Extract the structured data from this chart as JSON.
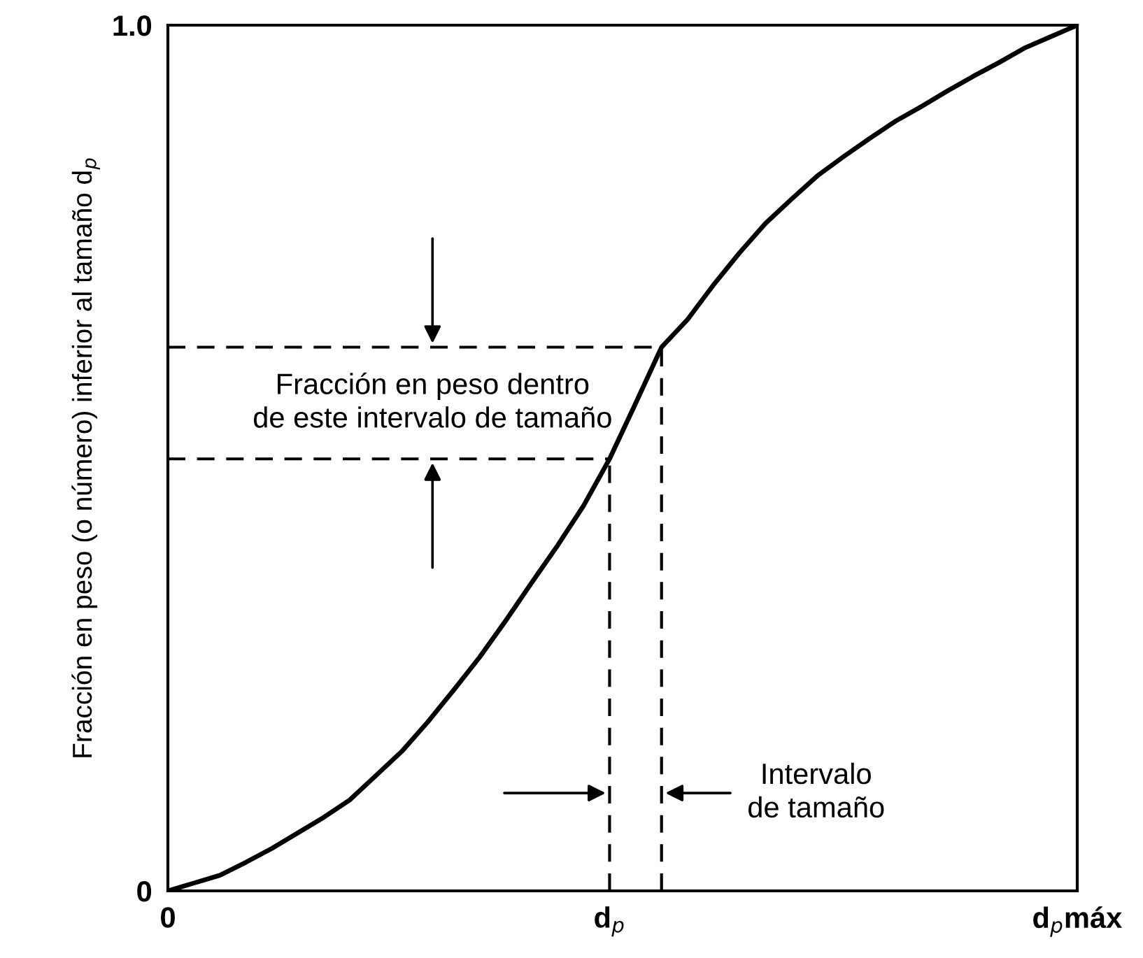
{
  "chart_data": {
    "type": "line",
    "ylabel": "Fracción en peso (o número) inferior al tamaño d$_{p}$",
    "ylim": [
      0,
      1
    ],
    "yticks": [
      0,
      {
        "value": 1,
        "label": "1.0"
      }
    ],
    "categories": [
      "0",
      null,
      null,
      null,
      null,
      null,
      null,
      null,
      null,
      null,
      null,
      null,
      null,
      null,
      null,
      null,
      null,
      "d$_{p}$",
      null,
      null,
      null,
      null,
      null,
      null,
      null,
      null,
      null,
      null,
      null,
      null,
      null,
      null,
      null,
      null,
      null,
      "d$_{p}$máx"
    ],
    "grid": false,
    "series": [
      {
        "color": "#000000",
        "line_style": "solid",
        "values": [
          0,
          0.009,
          0.018,
          0.033,
          0.049,
          0.067,
          0.085,
          0.105,
          0.133,
          0.161,
          0.195,
          0.232,
          0.27,
          0.312,
          0.356,
          0.399,
          0.445,
          0.499,
          0.563,
          0.628,
          0.66,
          0.7,
          0.737,
          0.771,
          0.799,
          0.826,
          0.848,
          0.869,
          0.889,
          0.906,
          0.924,
          0.941,
          0.957,
          0.974,
          0.987,
          1
        ]
      },
      {
        "color": "#000000",
        "line_style": "dashed",
        "values": [
          0.499,
          0.499,
          0.499,
          0.499,
          0.499,
          0.499,
          0.499,
          0.499,
          0.499,
          0.499,
          0.499,
          0.499,
          0.499,
          0.499,
          0.499,
          0.499,
          0.499,
          0.499,
          null,
          null,
          null,
          null,
          null,
          null,
          null,
          null,
          null,
          null,
          null,
          null,
          null,
          null,
          null,
          null,
          null,
          null
        ],
        "errors": [
          null,
          null,
          null,
          null,
          null,
          null,
          null,
          null,
          null,
          null,
          null,
          null,
          null,
          null,
          null,
          null,
          null,
          [
            0,
            0.499
          ],
          null,
          null,
          null,
          null,
          null,
          null,
          null,
          null,
          null,
          null,
          null,
          null,
          null,
          null,
          null,
          null,
          null,
          null
        ]
      },
      {
        "color": "#000000",
        "line_style": "dashed",
        "values": [
          0.628,
          0.628,
          0.628,
          0.628,
          0.628,
          0.628,
          0.628,
          0.628,
          0.628,
          0.628,
          0.628,
          0.628,
          0.628,
          0.628,
          0.628,
          0.628,
          0.628,
          0.628,
          0.628,
          0.628,
          null,
          null,
          null,
          null,
          null,
          null,
          null,
          null,
          null,
          null,
          null,
          null,
          null,
          null,
          null,
          null
        ],
        "errors": [
          null,
          null,
          null,
          null,
          null,
          null,
          null,
          null,
          null,
          null,
          null,
          null,
          null,
          null,
          null,
          null,
          null,
          null,
          null,
          [
            0,
            0.628
          ],
          null,
          null,
          null,
          null,
          null,
          null,
          null,
          null,
          null,
          null,
          null,
          null,
          null,
          null,
          null,
          null
        ]
      }
    ],
    "annotations": [
      "Fracción en peso dentro\nde este intervalo de tamaño",
      "Intervalo\nde tamaño"
    ]
  }
}
